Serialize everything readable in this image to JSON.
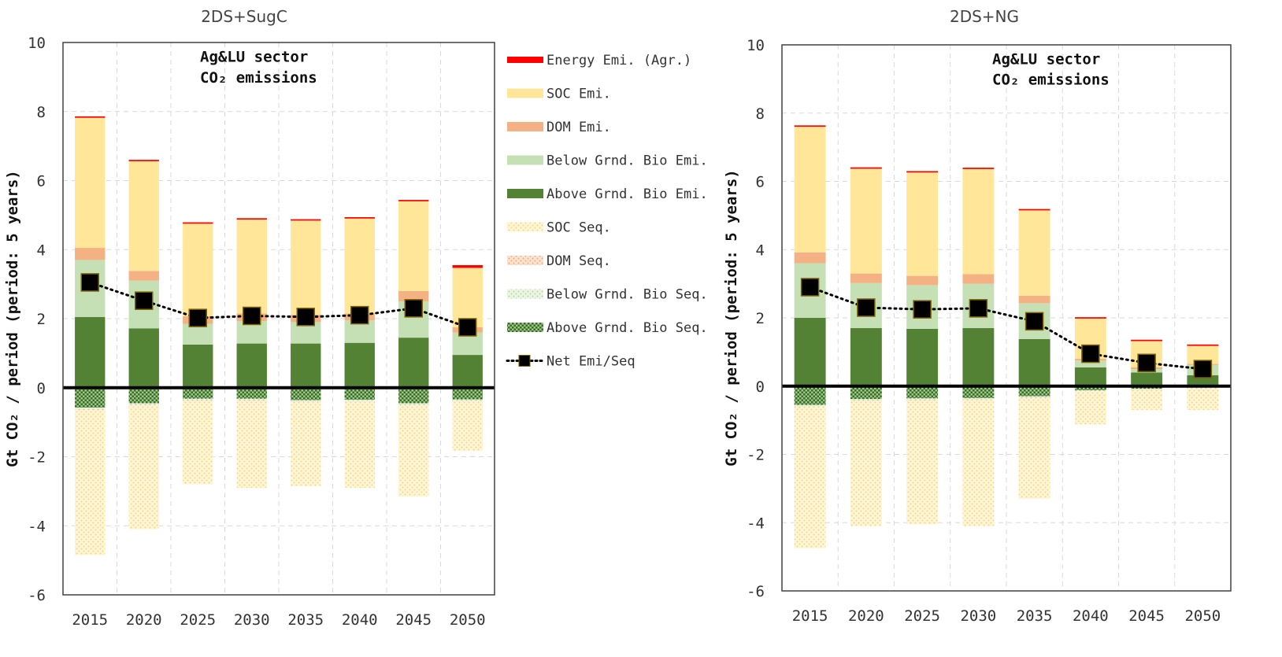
{
  "chart_data": [
    {
      "type": "bar",
      "title": "2DS+SugC",
      "annotation_line1": "Ag&LU sector",
      "annotation_line2": "CO₂ emissions",
      "ylabel": "Gt CO₂ / period (period: 5 years)",
      "ylim": [
        -6,
        10
      ],
      "yticks": [
        -6,
        -4,
        -2,
        0,
        2,
        4,
        6,
        8,
        10
      ],
      "categories": [
        "2015",
        "2020",
        "2025",
        "2030",
        "2035",
        "2040",
        "2045",
        "2050"
      ],
      "grid": true,
      "series": [
        {
          "name": "Above Grnd. Bio Emi.",
          "color": "#548235",
          "values": [
            2.05,
            1.72,
            1.25,
            1.28,
            1.28,
            1.3,
            1.45,
            0.95
          ]
        },
        {
          "name": "Below Grnd. Bio Emi.",
          "color": "#c5e0b4",
          "values": [
            1.65,
            1.38,
            0.6,
            0.65,
            0.62,
            0.65,
            1.05,
            0.65
          ]
        },
        {
          "name": "DOM Emi.",
          "color": "#f4b183",
          "values": [
            0.35,
            0.28,
            0.22,
            0.22,
            0.22,
            0.2,
            0.3,
            0.15
          ]
        },
        {
          "name": "SOC Emi.",
          "color": "#ffe699",
          "values": [
            3.77,
            3.18,
            2.68,
            2.72,
            2.72,
            2.75,
            2.6,
            1.72
          ]
        },
        {
          "name": "Energy Emi. (Agr.)",
          "color": "#ff0000",
          "values": [
            0.04,
            0.04,
            0.04,
            0.04,
            0.04,
            0.04,
            0.04,
            0.08
          ]
        },
        {
          "name": "Above Grnd. Bio Seq.",
          "color": "#548235",
          "values": [
            -0.58,
            -0.45,
            -0.32,
            -0.32,
            -0.36,
            -0.35,
            -0.45,
            -0.34
          ]
        },
        {
          "name": "Below Grnd. Bio Seq.",
          "color": "#c5e0b4",
          "values": [
            -0.04,
            -0.04,
            -0.04,
            -0.04,
            -0.04,
            -0.04,
            -0.04,
            -0.04
          ]
        },
        {
          "name": "DOM Seq.",
          "color": "#f4b183",
          "values": [
            -0.02,
            -0.02,
            -0.02,
            -0.02,
            -0.02,
            -0.02,
            -0.02,
            -0.02
          ]
        },
        {
          "name": "SOC Seq.",
          "color": "#ffe699",
          "values": [
            -4.21,
            -3.59,
            -2.42,
            -2.52,
            -2.43,
            -2.49,
            -2.64,
            -1.43
          ]
        }
      ],
      "net": {
        "name": "Net Emi/Seq",
        "values": [
          3.05,
          2.52,
          2.02,
          2.08,
          2.05,
          2.1,
          2.3,
          1.75
        ]
      }
    },
    {
      "type": "bar",
      "title": "2DS+NG",
      "annotation_line1": "Ag&LU sector",
      "annotation_line2": "CO₂ emissions",
      "ylabel": "Gt CO₂ / period (period: 5 years)",
      "ylim": [
        -6,
        10
      ],
      "yticks": [
        -6,
        -4,
        -2,
        0,
        2,
        4,
        6,
        8,
        10
      ],
      "categories": [
        "2015",
        "2020",
        "2025",
        "2030",
        "2035",
        "2040",
        "2045",
        "2050"
      ],
      "grid": true,
      "series": [
        {
          "name": "Above Grnd. Bio Emi.",
          "color": "#548235",
          "values": [
            2.0,
            1.7,
            1.68,
            1.7,
            1.38,
            0.55,
            0.4,
            0.32
          ]
        },
        {
          "name": "Below Grnd. Bio Emi.",
          "color": "#c5e0b4",
          "values": [
            1.6,
            1.32,
            1.28,
            1.3,
            1.05,
            0.2,
            0.1,
            0.3
          ]
        },
        {
          "name": "DOM Emi.",
          "color": "#f4b183",
          "values": [
            0.32,
            0.28,
            0.27,
            0.28,
            0.22,
            0.05,
            0.05,
            0.03
          ]
        },
        {
          "name": "SOC Emi.",
          "color": "#ffe699",
          "values": [
            3.68,
            3.07,
            3.03,
            3.08,
            2.5,
            1.18,
            0.77,
            0.53
          ]
        },
        {
          "name": "Energy Emi. (Agr.)",
          "color": "#ff0000",
          "values": [
            0.04,
            0.04,
            0.04,
            0.04,
            0.04,
            0.04,
            0.04,
            0.04
          ]
        },
        {
          "name": "Above Grnd. Bio Seq.",
          "color": "#548235",
          "values": [
            -0.55,
            -0.38,
            -0.36,
            -0.35,
            -0.3,
            -0.12,
            -0.08,
            -0.04
          ]
        },
        {
          "name": "Below Grnd. Bio Seq.",
          "color": "#c5e0b4",
          "values": [
            -0.03,
            -0.03,
            -0.03,
            -0.03,
            -0.03,
            -0.02,
            -0.02,
            -0.02
          ]
        },
        {
          "name": "DOM Seq.",
          "color": "#f4b183",
          "values": [
            -0.02,
            -0.02,
            -0.02,
            -0.02,
            -0.02,
            -0.01,
            -0.01,
            -0.01
          ]
        },
        {
          "name": "SOC Seq.",
          "color": "#ffe699",
          "values": [
            -4.15,
            -3.67,
            -3.64,
            -3.7,
            -2.95,
            -0.97,
            -0.59,
            -0.63
          ]
        }
      ],
      "net": {
        "name": "Net Emi/Seq",
        "values": [
          2.9,
          2.3,
          2.25,
          2.28,
          1.9,
          0.95,
          0.68,
          0.5
        ]
      }
    }
  ],
  "legend": [
    {
      "name": "Energy Emi. (Agr.)",
      "color": "#ff0000",
      "style": "solid"
    },
    {
      "name": "SOC Emi.",
      "color": "#ffe699",
      "style": "solid"
    },
    {
      "name": "DOM Emi.",
      "color": "#f4b183",
      "style": "solid"
    },
    {
      "name": "Below Grnd. Bio Emi.",
      "color": "#c5e0b4",
      "style": "solid"
    },
    {
      "name": "Above Grnd. Bio Emi.",
      "color": "#548235",
      "style": "solid"
    },
    {
      "name": "SOC Seq.",
      "color": "#ffe699",
      "style": "dots"
    },
    {
      "name": "DOM Seq.",
      "color": "#f4b183",
      "style": "dots"
    },
    {
      "name": "Below Grnd. Bio Seq.",
      "color": "#c5e0b4",
      "style": "dots"
    },
    {
      "name": "Above Grnd. Bio Seq.",
      "color": "#548235",
      "style": "check"
    },
    {
      "name": "Net Emi/Seq",
      "color": "#000000",
      "style": "net"
    }
  ]
}
